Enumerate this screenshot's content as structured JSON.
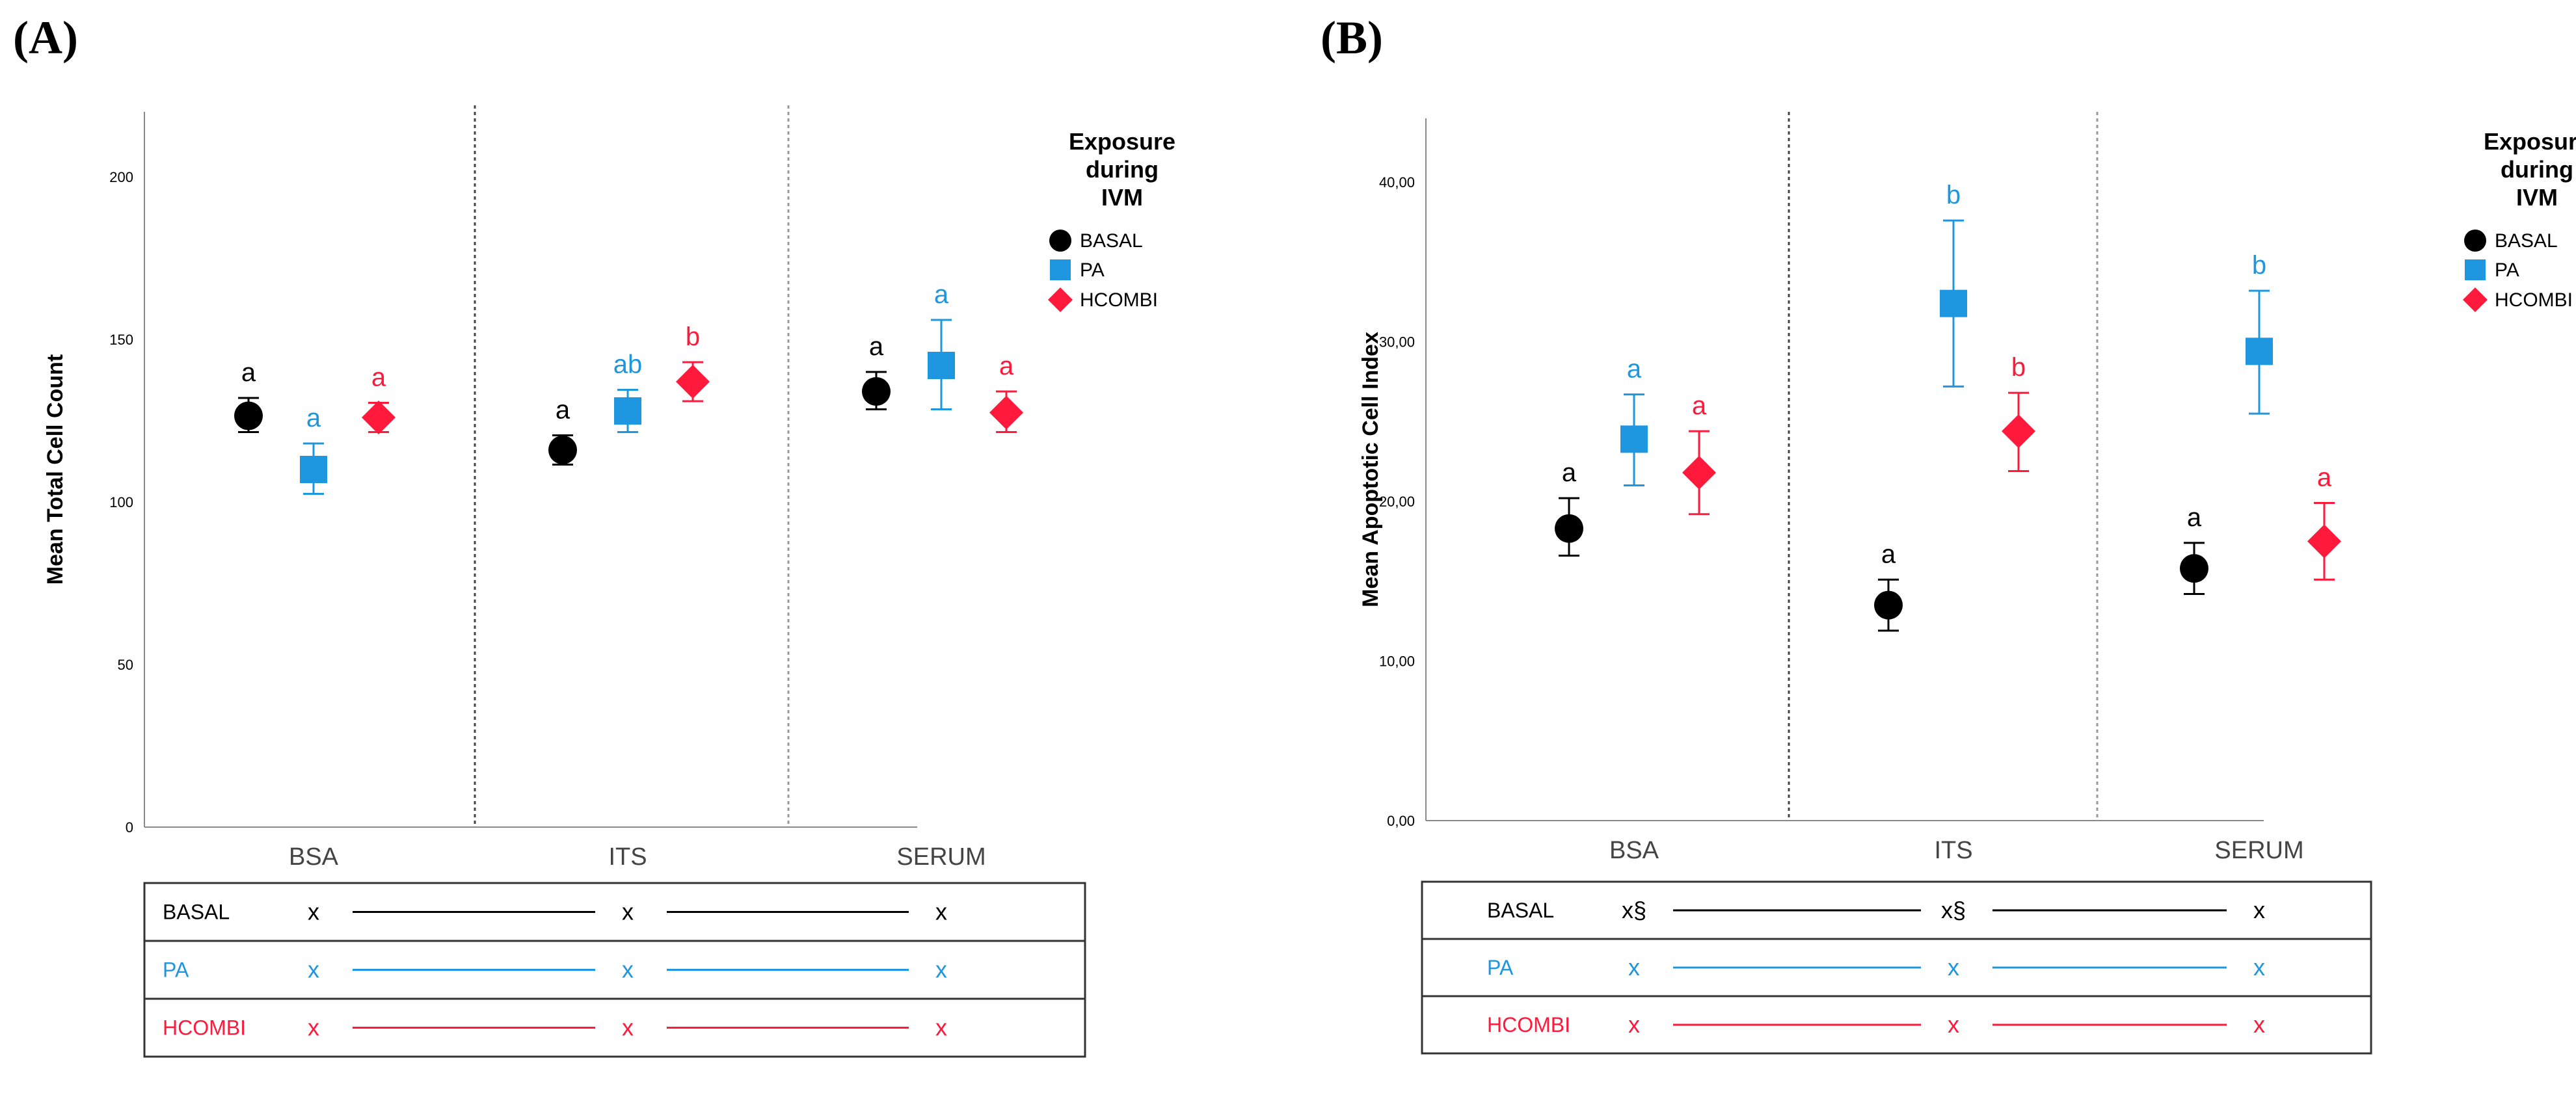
{
  "colors": {
    "BASAL": "#000000",
    "PA": "#1f96e0",
    "HCOMBI": "#ff1a3c"
  },
  "legend": {
    "title": [
      "Exposure",
      "during",
      "IVM"
    ]
  },
  "chart_data": [
    {
      "panel": "(A)",
      "type": "scatter",
      "ylabel": "Mean Total Cell Count",
      "ylim": [
        0,
        220
      ],
      "yticks": [
        0,
        50,
        100,
        150,
        200
      ],
      "ytick_labels": [
        "0",
        "50",
        "100",
        "150",
        "200"
      ],
      "categories": [
        "BSA",
        "ITS",
        "SERUM"
      ],
      "series": [
        {
          "name": "BASAL",
          "marker": "circle",
          "values": [
            126.5,
            116,
            134
          ],
          "lower": [
            121.5,
            111.5,
            128.5
          ],
          "upper": [
            132,
            120.5,
            140
          ],
          "letters": [
            "a",
            "a",
            "a"
          ]
        },
        {
          "name": "PA",
          "marker": "square",
          "values": [
            110,
            128,
            142
          ],
          "lower": [
            102.5,
            121.5,
            128.5
          ],
          "upper": [
            118,
            134.5,
            156
          ],
          "letters": [
            "a",
            "ab",
            "a"
          ]
        },
        {
          "name": "HCOMBI",
          "marker": "diamond",
          "values": [
            126,
            137,
            127.5
          ],
          "lower": [
            121.5,
            131,
            121.5
          ],
          "upper": [
            130.5,
            143,
            134
          ],
          "letters": [
            "a",
            "b",
            "a"
          ]
        }
      ],
      "table": [
        {
          "label": "BASAL",
          "marks": [
            "x",
            "x",
            "x"
          ]
        },
        {
          "label": "PA",
          "marks": [
            "x",
            "x",
            "x"
          ]
        },
        {
          "label": "HCOMBI",
          "marks": [
            "x",
            "x",
            "x"
          ]
        }
      ]
    },
    {
      "panel": "(B)",
      "type": "scatter",
      "ylabel": "Mean Apoptotic Cell Index",
      "ylim": [
        0,
        44
      ],
      "yticks": [
        0,
        10,
        20,
        30,
        40
      ],
      "ytick_labels": [
        "0,00",
        "10,00",
        "20,00",
        "30,00",
        "40,00"
      ],
      "categories": [
        "BSA",
        "ITS",
        "SERUM"
      ],
      "series": [
        {
          "name": "BASAL",
          "marker": "circle",
          "values": [
            18.3,
            13.5,
            15.8
          ],
          "lower": [
            16.6,
            11.9,
            14.2
          ],
          "upper": [
            20.2,
            15.1,
            17.4
          ],
          "letters": [
            "a",
            "a",
            "a"
          ]
        },
        {
          "name": "PA",
          "marker": "square",
          "values": [
            23.9,
            32.4,
            29.4
          ],
          "lower": [
            21.0,
            27.2,
            25.5
          ],
          "upper": [
            26.7,
            37.6,
            33.2
          ],
          "letters": [
            "a",
            "b",
            "b"
          ]
        },
        {
          "name": "HCOMBI",
          "marker": "diamond",
          "values": [
            21.8,
            24.4,
            17.5
          ],
          "lower": [
            19.2,
            21.9,
            15.1
          ],
          "upper": [
            24.4,
            26.8,
            19.9
          ],
          "letters": [
            "a",
            "b",
            "a"
          ]
        }
      ],
      "table": [
        {
          "label": "BASAL",
          "marks": [
            "x§",
            "x§",
            "x"
          ]
        },
        {
          "label": "PA",
          "marks": [
            "x",
            "x",
            "x"
          ]
        },
        {
          "label": "HCOMBI",
          "marks": [
            "x",
            "x",
            "x"
          ]
        }
      ]
    }
  ]
}
